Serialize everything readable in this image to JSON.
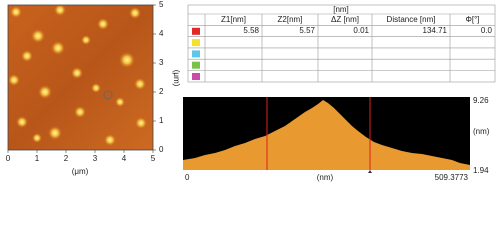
{
  "image": {
    "x_ticks": [
      "0",
      "1",
      "2",
      "3",
      "4",
      "5"
    ],
    "y_ticks": [
      "0",
      "1",
      "2",
      "3",
      "4",
      "5"
    ],
    "x_label": "(μm)",
    "y_label": "(μm)"
  },
  "table": {
    "unit_header": "[nm]",
    "columns": [
      "Z1[nm]",
      "Z2[nm]",
      "ΔZ [nm]",
      "Distance [nm]",
      "Φ[°]"
    ],
    "rows": [
      [
        "5.58",
        "5.57",
        "0.01",
        "134.71",
        "0.0"
      ],
      [
        "",
        "",
        "",
        "",
        ""
      ],
      [
        "",
        "",
        "",
        "",
        ""
      ],
      [
        "",
        "",
        "",
        "",
        ""
      ],
      [
        "",
        "",
        "",
        "",
        ""
      ]
    ]
  },
  "profile": {
    "y_max": "9.26",
    "y_min": "1.94",
    "y_label": "(nm)",
    "x_min": "0",
    "x_max": "509.3773",
    "x_label": "(nm)"
  }
}
